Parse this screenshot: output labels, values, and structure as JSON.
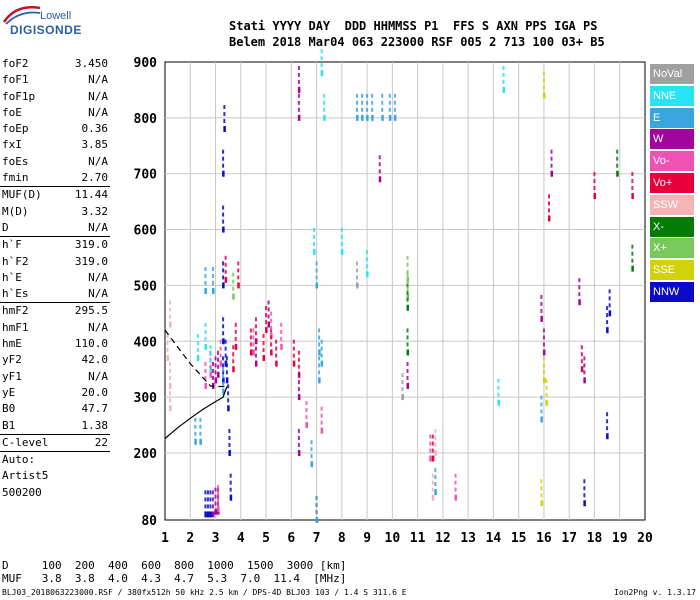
{
  "logo": {
    "line1": "Lowell",
    "line2": "DIGISONDE"
  },
  "header": {
    "labels": "Stati YYYY DAY  DDD HHMMSS P1  FFS S AXN PPS IGA PS",
    "values": "Belem 2018 Mar04 063 223000 RSF 005 2 713 100 03+ B5"
  },
  "params": [
    {
      "label": "foF2",
      "value": "3.450"
    },
    {
      "label": "foF1",
      "value": "N/A"
    },
    {
      "label": "foF1p",
      "value": "N/A"
    },
    {
      "label": "foE",
      "value": "N/A"
    },
    {
      "label": "foEp",
      "value": "0.36"
    },
    {
      "label": "fxI",
      "value": "3.85"
    },
    {
      "label": "foEs",
      "value": "N/A"
    },
    {
      "label": "fmin",
      "value": "2.70"
    },
    {
      "sep": true
    },
    {
      "label": "MUF(D)",
      "value": "11.44"
    },
    {
      "label": "M(D)",
      "value": "3.32"
    },
    {
      "label": "D",
      "value": "N/A"
    },
    {
      "sep": true
    },
    {
      "label": "h`F",
      "value": "319.0"
    },
    {
      "label": "h`F2",
      "value": "319.0"
    },
    {
      "label": "h`E",
      "value": "N/A"
    },
    {
      "label": "h`Es",
      "value": "N/A"
    },
    {
      "sep": true
    },
    {
      "label": "hmF2",
      "value": "295.5"
    },
    {
      "label": "hmF1",
      "value": "N/A"
    },
    {
      "label": "hmE",
      "value": "110.0"
    },
    {
      "label": "yF2",
      "value": "42.0"
    },
    {
      "label": "yF1",
      "value": "N/A"
    },
    {
      "label": "yE",
      "value": "20.0"
    },
    {
      "label": "B0",
      "value": "47.7"
    },
    {
      "label": "B1",
      "value": "1.38"
    },
    {
      "sep": true
    },
    {
      "label": "C-level",
      "value": "22"
    },
    {
      "sep": true
    },
    {
      "text": "Auto:"
    },
    {
      "text": "Artist5"
    },
    {
      "text": "500200"
    }
  ],
  "legend": [
    {
      "label": "NoVal",
      "color": "#a0a0a0"
    },
    {
      "label": "NNE",
      "color": "#29e3f5"
    },
    {
      "label": "E",
      "color": "#3aa6e0"
    },
    {
      "label": "W",
      "color": "#a0049b"
    },
    {
      "label": "Vo-",
      "color": "#f052b4"
    },
    {
      "label": "Vo+",
      "color": "#e8003c"
    },
    {
      "label": "SSW",
      "color": "#f4b4b4"
    },
    {
      "label": "X-",
      "color": "#057a05"
    },
    {
      "label": "X+",
      "color": "#78c85a"
    },
    {
      "label": "SSE",
      "color": "#d2d20a"
    },
    {
      "label": "NNW",
      "color": "#0a0ac8"
    }
  ],
  "distance": {
    "line1": "D     100  200  400  600  800  1000  1500  3000 [km]",
    "line2": "MUF   3.8  3.8  4.0  4.3  4.7  5.3  7.0  11.4  [MHz]"
  },
  "footer": "BLJ03_2018063223000.RSF / 380fx512h 50 kHz 2.5 km / DPS-4D BLJ03 103 / 1.4 S 311.6 E",
  "version": "Ion2Png v. 1.3.17",
  "chart_data": {
    "type": "scatter",
    "xlim": [
      1,
      20
    ],
    "ylim": [
      80,
      900
    ],
    "x_ticks": [
      1,
      2,
      3,
      4,
      5,
      6,
      7,
      8,
      9,
      10,
      11,
      12,
      13,
      14,
      15,
      16,
      17,
      18,
      19,
      20
    ],
    "y_ticks": [
      80,
      200,
      300,
      400,
      500,
      600,
      700,
      800,
      900
    ],
    "grid": true,
    "legend_position": "right",
    "series": [
      {
        "name": "NNW",
        "color": "#0a0ac8",
        "points": [
          [
            3.3,
            330
          ],
          [
            3.3,
            400
          ],
          [
            3.3,
            500
          ],
          [
            3.3,
            600
          ],
          [
            3.3,
            700
          ],
          [
            3.35,
            780
          ],
          [
            3.4,
            360
          ],
          [
            3.45,
            330
          ],
          [
            3.5,
            280
          ],
          [
            3.55,
            200
          ],
          [
            3.6,
            120
          ],
          [
            2.6,
            90
          ],
          [
            2.7,
            90
          ],
          [
            2.8,
            90
          ],
          [
            18.5,
            420
          ],
          [
            18.6,
            450
          ],
          [
            18.5,
            230
          ],
          [
            17.6,
            110
          ]
        ]
      },
      {
        "name": "Vo+",
        "color": "#e8003c",
        "points": [
          [
            3.7,
            350
          ],
          [
            3.8,
            390
          ],
          [
            4.4,
            380
          ],
          [
            4.6,
            400
          ],
          [
            4.9,
            370
          ],
          [
            5.0,
            420
          ],
          [
            5.2,
            380
          ],
          [
            5.4,
            360
          ],
          [
            3.4,
            510
          ],
          [
            3.9,
            500
          ],
          [
            6.3,
            340
          ],
          [
            6.1,
            360
          ],
          [
            11.6,
            190
          ],
          [
            17.5,
            350
          ],
          [
            16.2,
            620
          ],
          [
            19.5,
            660
          ],
          [
            18.0,
            660
          ]
        ]
      },
      {
        "name": "W",
        "color": "#a0049b",
        "points": [
          [
            2.9,
            90
          ],
          [
            3.0,
            95
          ],
          [
            3.1,
            95
          ],
          [
            3.0,
            330
          ],
          [
            3.1,
            340
          ],
          [
            2.9,
            320
          ],
          [
            4.6,
            360
          ],
          [
            5.1,
            430
          ],
          [
            6.3,
            850
          ],
          [
            6.3,
            800
          ],
          [
            6.3,
            300
          ],
          [
            6.3,
            200
          ],
          [
            7.0,
            80
          ],
          [
            9.5,
            690
          ],
          [
            10.6,
            320
          ],
          [
            17.4,
            470
          ],
          [
            17.6,
            330
          ],
          [
            16.3,
            700
          ],
          [
            15.9,
            440
          ],
          [
            16.0,
            380
          ]
        ]
      },
      {
        "name": "Vo-",
        "color": "#f052b4",
        "points": [
          [
            2.6,
            320
          ],
          [
            2.8,
            340
          ],
          [
            3.2,
            360
          ],
          [
            4.5,
            380
          ],
          [
            5.2,
            410
          ],
          [
            5.6,
            390
          ],
          [
            6.6,
            250
          ],
          [
            7.2,
            240
          ],
          [
            3.1,
            100
          ],
          [
            11.5,
            190
          ],
          [
            12.5,
            120
          ]
        ]
      },
      {
        "name": "E",
        "color": "#3aa6e0",
        "points": [
          [
            8.6,
            800
          ],
          [
            8.8,
            800
          ],
          [
            9.0,
            800
          ],
          [
            9.2,
            800
          ],
          [
            9.6,
            800
          ],
          [
            9.9,
            800
          ],
          [
            10.1,
            800
          ],
          [
            7.0,
            500
          ],
          [
            7.1,
            380
          ],
          [
            7.2,
            360
          ],
          [
            7.1,
            330
          ],
          [
            2.2,
            220
          ],
          [
            2.4,
            220
          ],
          [
            2.6,
            490
          ],
          [
            2.9,
            490
          ],
          [
            3.3,
            310
          ],
          [
            7.0,
            80
          ],
          [
            6.8,
            180
          ],
          [
            11.7,
            130
          ],
          [
            15.9,
            260
          ]
        ]
      },
      {
        "name": "NNE",
        "color": "#29e3f5",
        "points": [
          [
            2.3,
            370
          ],
          [
            2.6,
            390
          ],
          [
            2.8,
            350
          ],
          [
            7.2,
            880
          ],
          [
            7.3,
            800
          ],
          [
            6.9,
            560
          ],
          [
            8.0,
            560
          ],
          [
            9.0,
            520
          ],
          [
            14.4,
            850
          ],
          [
            14.2,
            290
          ]
        ]
      },
      {
        "name": "SSW",
        "color": "#f4b4b4",
        "points": [
          [
            1.1,
            370
          ],
          [
            1.2,
            320
          ],
          [
            1.2,
            280
          ],
          [
            11.7,
            200
          ],
          [
            11.6,
            120
          ],
          [
            1.2,
            430
          ]
        ]
      },
      {
        "name": "X-",
        "color": "#057a05",
        "points": [
          [
            10.6,
            380
          ],
          [
            10.6,
            460
          ],
          [
            18.9,
            700
          ],
          [
            19.5,
            530
          ]
        ]
      },
      {
        "name": "X+",
        "color": "#78c85a",
        "points": [
          [
            10.6,
            510
          ],
          [
            10.6,
            480
          ],
          [
            3.7,
            480
          ]
        ]
      },
      {
        "name": "SSE",
        "color": "#d2d20a",
        "points": [
          [
            16.0,
            330
          ],
          [
            16.1,
            290
          ],
          [
            15.9,
            110
          ],
          [
            16.0,
            840
          ]
        ]
      },
      {
        "name": "NoVal",
        "color": "#a0a0a0",
        "points": [
          [
            8.6,
            500
          ],
          [
            10.4,
            300
          ]
        ]
      }
    ],
    "profile": {
      "solid": [
        [
          1,
          226
        ],
        [
          1.5,
          245
        ],
        [
          2,
          262
        ],
        [
          2.5,
          278
        ],
        [
          3,
          292
        ],
        [
          3.3,
          300
        ],
        [
          3.45,
          319
        ]
      ],
      "dashed": [
        [
          1,
          420
        ],
        [
          1.5,
          390
        ],
        [
          2,
          360
        ],
        [
          2.5,
          335
        ],
        [
          2.8,
          320
        ],
        [
          3.1,
          319
        ],
        [
          3.45,
          319
        ]
      ]
    }
  }
}
